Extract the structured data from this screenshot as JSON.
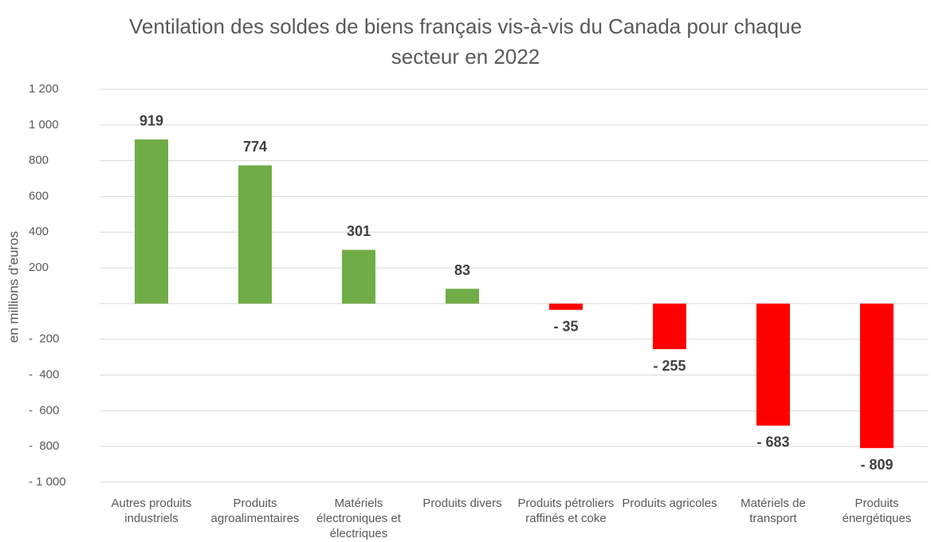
{
  "chart_data": {
    "type": "bar",
    "title": "Ventilation des soldes de biens français vis-à-vis du Canada pour chaque secteur en 2022",
    "y_label": "en millions d'euros",
    "categories": [
      "Autres produits industriels",
      "Produits agroalimentaires",
      "Matériels électroniques et électriques",
      "Produits divers",
      "Produits pétroliers raffinés et coke",
      "Produits agricoles",
      "Matériels de transport",
      "Produits énergétiques"
    ],
    "values": [
      919,
      774,
      301,
      83,
      -35,
      -255,
      -683,
      -809
    ],
    "value_labels": [
      "919",
      "774",
      "301",
      "83",
      "- 35",
      "- 255",
      "- 683",
      "- 809"
    ],
    "colors": [
      "#70ad47",
      "#70ad47",
      "#70ad47",
      "#70ad47",
      "#ff0000",
      "#ff0000",
      "#ff0000",
      "#ff0000"
    ],
    "ylim": [
      -1000,
      1200
    ],
    "yticks": [
      {
        "value": 1200,
        "label": "1 200"
      },
      {
        "value": 1000,
        "label": "1 000"
      },
      800,
      600,
      400,
      200,
      {
        "value": -200,
        "label": "-  200"
      },
      {
        "value": -400,
        "label": "-  400"
      },
      {
        "value": -600,
        "label": "-  600"
      },
      {
        "value": -800,
        "label": "-  800"
      },
      {
        "value": -1000,
        "label": "- 1 000"
      }
    ],
    "grid": true
  }
}
